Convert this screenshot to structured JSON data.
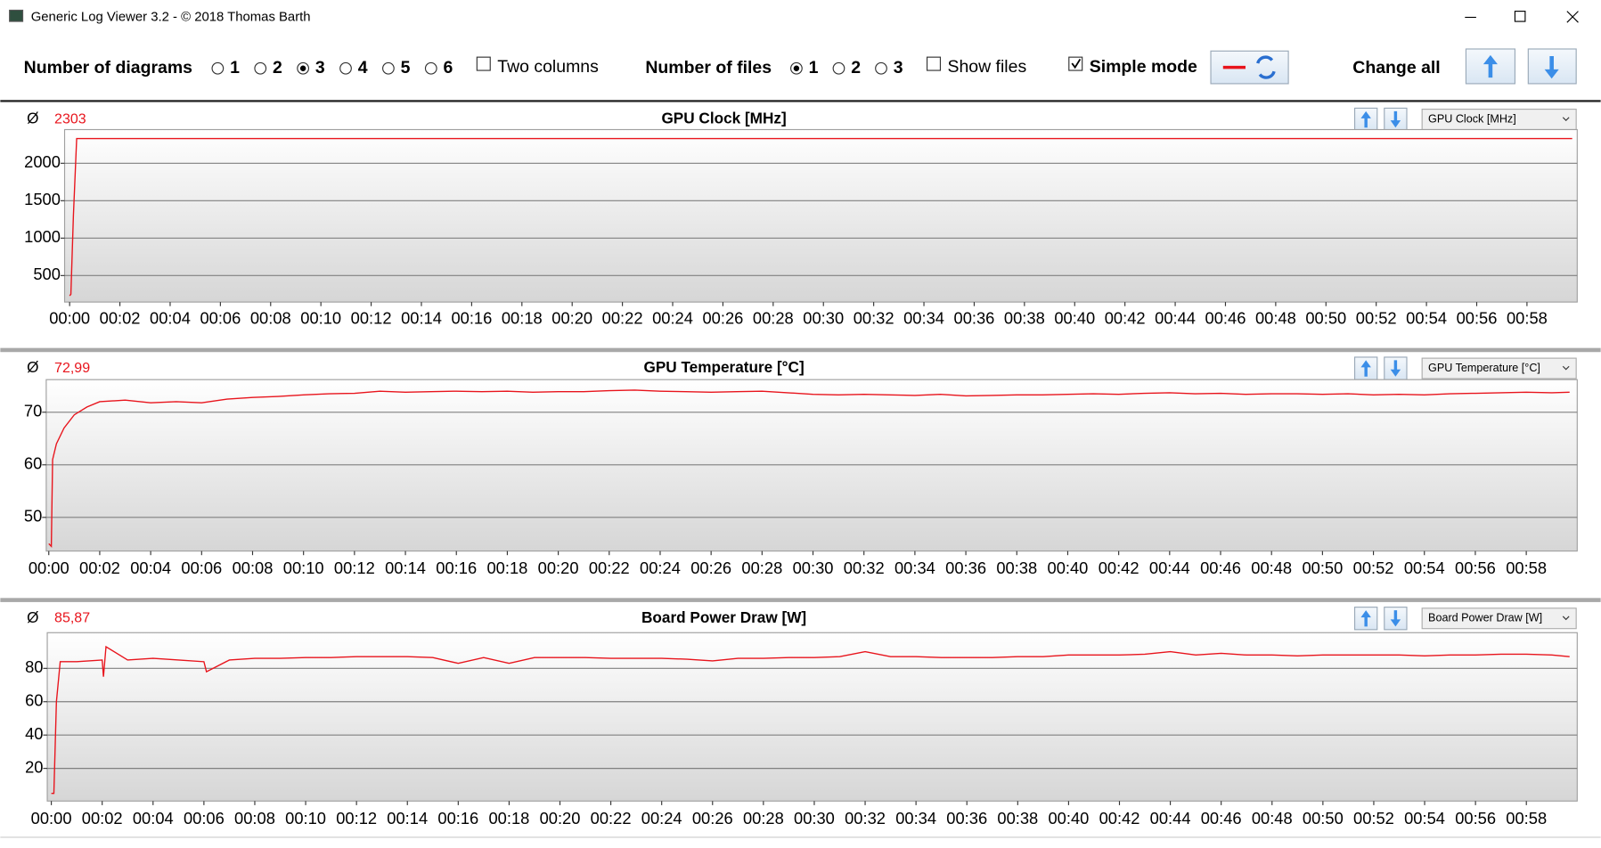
{
  "window": {
    "title": "Generic Log Viewer 3.2 - © 2018 Thomas Barth"
  },
  "toolbar": {
    "diagrams_label": "Number of diagrams",
    "diagram_options": [
      "1",
      "2",
      "3",
      "4",
      "5",
      "6"
    ],
    "diagram_selected": 2,
    "two_columns": {
      "label": "Two columns",
      "checked": false
    },
    "files_label": "Number of files",
    "file_options": [
      "1",
      "2",
      "3"
    ],
    "file_selected": 0,
    "show_files": {
      "label": "Show files",
      "checked": false
    },
    "simple_mode": {
      "label": "Simple mode",
      "checked": true
    },
    "change_all": "Change all"
  },
  "chart_data": [
    {
      "type": "line",
      "title": "GPU Clock [MHz]",
      "average_symbol": "Ø",
      "average": 2303,
      "selector": "GPU Clock [MHz]",
      "color": "#e8141c",
      "x": [
        0,
        0.05,
        0.15,
        0.28,
        59.8
      ],
      "values": [
        230,
        250,
        1300,
        2330,
        2330
      ],
      "xlim": [
        -0.2,
        60
      ],
      "ylim": [
        146,
        2450
      ],
      "yticks": [
        500,
        1000,
        1500,
        2000
      ],
      "grid": true,
      "xticks": [
        {
          "value": 0,
          "label": "00:00"
        },
        {
          "value": 2,
          "label": "00:02"
        },
        {
          "value": 4,
          "label": "00:04"
        },
        {
          "value": 6,
          "label": "00:06"
        },
        {
          "value": 8,
          "label": "00:08"
        },
        {
          "value": 10,
          "label": "00:10"
        },
        {
          "value": 12,
          "label": "00:12"
        },
        {
          "value": 14,
          "label": "00:14"
        },
        {
          "value": 16,
          "label": "00:16"
        },
        {
          "value": 18,
          "label": "00:18"
        },
        {
          "value": 20,
          "label": "00:20"
        },
        {
          "value": 22,
          "label": "00:22"
        },
        {
          "value": 24,
          "label": "00:24"
        },
        {
          "value": 26,
          "label": "00:26"
        },
        {
          "value": 28,
          "label": "00:28"
        },
        {
          "value": 30,
          "label": "00:30"
        },
        {
          "value": 32,
          "label": "00:32"
        },
        {
          "value": 34,
          "label": "00:34"
        },
        {
          "value": 36,
          "label": "00:36"
        },
        {
          "value": 38,
          "label": "00:38"
        },
        {
          "value": 40,
          "label": "00:40"
        },
        {
          "value": 42,
          "label": "00:42"
        },
        {
          "value": 44,
          "label": "00:44"
        },
        {
          "value": 46,
          "label": "00:46"
        },
        {
          "value": 48,
          "label": "00:48"
        },
        {
          "value": 50,
          "label": "00:50"
        },
        {
          "value": 52,
          "label": "00:52"
        },
        {
          "value": 54,
          "label": "00:54"
        },
        {
          "value": 56,
          "label": "00:56"
        },
        {
          "value": 58,
          "label": "00:58"
        }
      ]
    },
    {
      "type": "line",
      "title": "GPU Temperature [°C]",
      "average_symbol": "Ø",
      "average": {
        "value": 72.99,
        "label": "72,99"
      },
      "selector": "GPU Temperature [°C]",
      "color": "#e8141c",
      "x": [
        0,
        0.1,
        0.15,
        0.3,
        0.6,
        1,
        1.5,
        2,
        3,
        4,
        5,
        6,
        7,
        8,
        9,
        10,
        11,
        12,
        13,
        14,
        15,
        16,
        17,
        18,
        19,
        20,
        21,
        22,
        23,
        24,
        25,
        26,
        27,
        28,
        29,
        30,
        31,
        32,
        33,
        34,
        35,
        36,
        37,
        38,
        39,
        40,
        41,
        42,
        43,
        44,
        45,
        46,
        47,
        48,
        49,
        50,
        51,
        52,
        53,
        54,
        55,
        56,
        57,
        58,
        59,
        59.7
      ],
      "values": [
        45,
        44.5,
        61,
        64,
        67,
        69.5,
        71,
        72,
        72.3,
        71.8,
        72,
        71.8,
        72.5,
        72.8,
        73,
        73.3,
        73.5,
        73.6,
        74,
        73.8,
        73.9,
        74,
        73.9,
        74,
        73.8,
        73.9,
        73.9,
        74.1,
        74.2,
        74,
        73.9,
        73.8,
        73.9,
        74,
        73.7,
        73.4,
        73.3,
        73.4,
        73.3,
        73.2,
        73.4,
        73.1,
        73.2,
        73.3,
        73.3,
        73.4,
        73.5,
        73.4,
        73.6,
        73.7,
        73.5,
        73.6,
        73.4,
        73.5,
        73.5,
        73.4,
        73.5,
        73.3,
        73.4,
        73.3,
        73.5,
        73.6,
        73.7,
        73.8,
        73.7,
        73.8
      ],
      "xlim": [
        -0.1,
        60
      ],
      "ylim": [
        43.6,
        76.2
      ],
      "yticks": [
        50,
        60,
        70
      ],
      "grid": true,
      "xticks": [
        {
          "value": 0,
          "label": "00:00"
        },
        {
          "value": 2,
          "label": "00:02"
        },
        {
          "value": 4,
          "label": "00:04"
        },
        {
          "value": 6,
          "label": "00:06"
        },
        {
          "value": 8,
          "label": "00:08"
        },
        {
          "value": 10,
          "label": "00:10"
        },
        {
          "value": 12,
          "label": "00:12"
        },
        {
          "value": 14,
          "label": "00:14"
        },
        {
          "value": 16,
          "label": "00:16"
        },
        {
          "value": 18,
          "label": "00:18"
        },
        {
          "value": 20,
          "label": "00:20"
        },
        {
          "value": 22,
          "label": "00:22"
        },
        {
          "value": 24,
          "label": "00:24"
        },
        {
          "value": 26,
          "label": "00:26"
        },
        {
          "value": 28,
          "label": "00:28"
        },
        {
          "value": 30,
          "label": "00:30"
        },
        {
          "value": 32,
          "label": "00:32"
        },
        {
          "value": 34,
          "label": "00:34"
        },
        {
          "value": 36,
          "label": "00:36"
        },
        {
          "value": 38,
          "label": "00:38"
        },
        {
          "value": 40,
          "label": "00:40"
        },
        {
          "value": 42,
          "label": "00:42"
        },
        {
          "value": 44,
          "label": "00:44"
        },
        {
          "value": 46,
          "label": "00:46"
        },
        {
          "value": 48,
          "label": "00:48"
        },
        {
          "value": 50,
          "label": "00:50"
        },
        {
          "value": 52,
          "label": "00:52"
        },
        {
          "value": 54,
          "label": "00:54"
        },
        {
          "value": 56,
          "label": "00:56"
        },
        {
          "value": 58,
          "label": "00:58"
        }
      ]
    },
    {
      "type": "line",
      "title": "Board Power Draw [W]",
      "average_symbol": "Ø",
      "average": {
        "value": 85.87,
        "label": "85,87"
      },
      "selector": "Board Power Draw [W]",
      "color": "#e8141c",
      "x": [
        0,
        0.1,
        0.2,
        0.35,
        1,
        2,
        2.05,
        2.15,
        3,
        4,
        5,
        6,
        6.1,
        7,
        8,
        9,
        10,
        11,
        12,
        13,
        14,
        15,
        16,
        17,
        18,
        19,
        20,
        21,
        22,
        23,
        24,
        25,
        26,
        27,
        28,
        29,
        30,
        31,
        32,
        33,
        34,
        35,
        36,
        37,
        38,
        39,
        40,
        41,
        42,
        43,
        44,
        45,
        46,
        47,
        48,
        49,
        50,
        51,
        52,
        53,
        54,
        55,
        56,
        57,
        58,
        59,
        59.7
      ],
      "values": [
        5,
        5,
        60,
        84,
        84,
        85,
        75,
        93,
        85,
        86,
        85,
        84,
        78,
        85,
        86,
        86,
        86.5,
        86.5,
        87,
        87,
        87,
        86.5,
        83,
        86.5,
        83,
        86.5,
        86.5,
        86.5,
        86,
        86,
        86,
        85.5,
        84.5,
        86,
        86,
        86.5,
        86.5,
        87,
        90,
        87,
        87,
        86.5,
        86.5,
        86.5,
        87,
        87,
        88,
        88,
        88,
        88.5,
        90,
        88,
        89,
        88,
        88,
        87.5,
        88,
        88,
        88,
        88,
        87.5,
        88,
        88,
        88.5,
        88.5,
        88,
        87
      ],
      "xlim": [
        -0.16,
        60
      ],
      "ylim": [
        0.4,
        101.4
      ],
      "yticks": [
        20,
        40,
        60,
        80
      ],
      "grid": true,
      "xticks": [
        {
          "value": 0,
          "label": "00:00"
        },
        {
          "value": 2,
          "label": "00:02"
        },
        {
          "value": 4,
          "label": "00:04"
        },
        {
          "value": 6,
          "label": "00:06"
        },
        {
          "value": 8,
          "label": "00:08"
        },
        {
          "value": 10,
          "label": "00:10"
        },
        {
          "value": 12,
          "label": "00:12"
        },
        {
          "value": 14,
          "label": "00:14"
        },
        {
          "value": 16,
          "label": "00:16"
        },
        {
          "value": 18,
          "label": "00:18"
        },
        {
          "value": 20,
          "label": "00:20"
        },
        {
          "value": 22,
          "label": "00:22"
        },
        {
          "value": 24,
          "label": "00:24"
        },
        {
          "value": 26,
          "label": "00:26"
        },
        {
          "value": 28,
          "label": "00:28"
        },
        {
          "value": 30,
          "label": "00:30"
        },
        {
          "value": 32,
          "label": "00:32"
        },
        {
          "value": 34,
          "label": "00:34"
        },
        {
          "value": 36,
          "label": "00:36"
        },
        {
          "value": 38,
          "label": "00:38"
        },
        {
          "value": 40,
          "label": "00:40"
        },
        {
          "value": 42,
          "label": "00:42"
        },
        {
          "value": 44,
          "label": "00:44"
        },
        {
          "value": 46,
          "label": "00:46"
        },
        {
          "value": 48,
          "label": "00:48"
        },
        {
          "value": 50,
          "label": "00:50"
        },
        {
          "value": 52,
          "label": "00:52"
        },
        {
          "value": 54,
          "label": "00:54"
        },
        {
          "value": 56,
          "label": "00:56"
        },
        {
          "value": 58,
          "label": "00:58"
        }
      ]
    }
  ]
}
